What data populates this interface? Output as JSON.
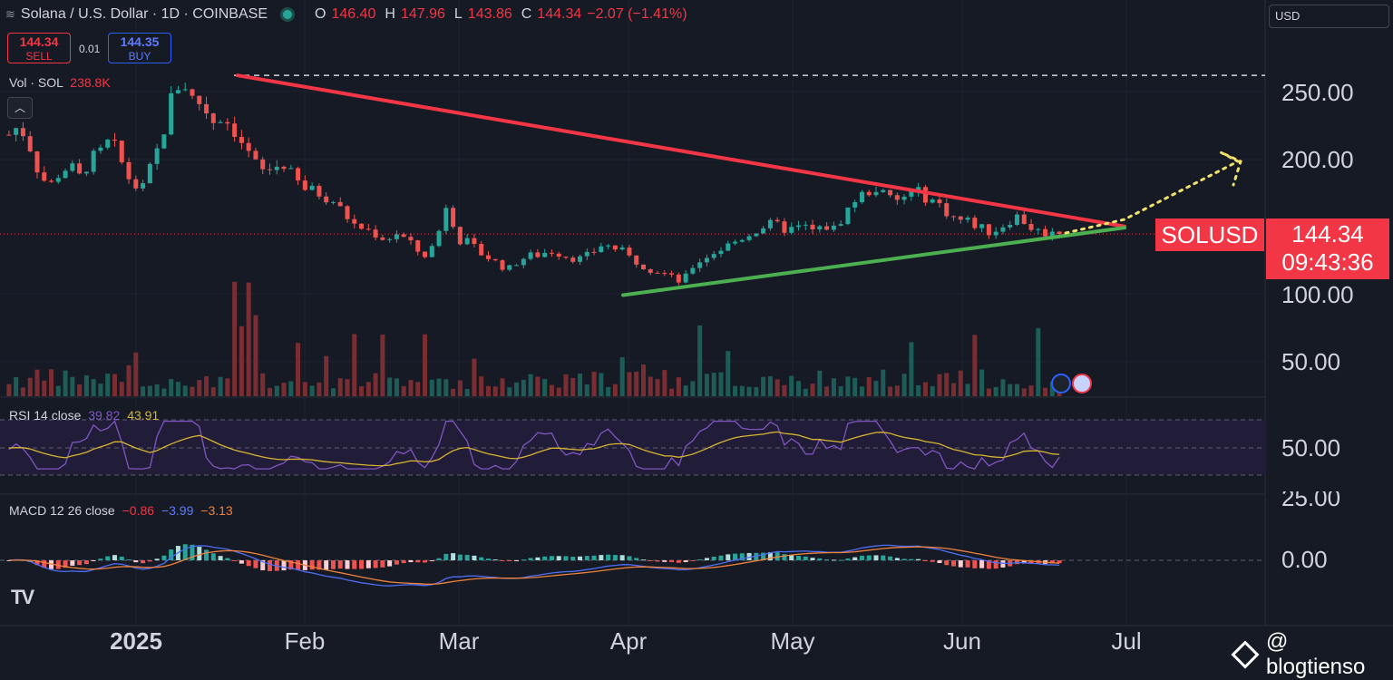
{
  "header": {
    "title": "Solana / U.S. Dollar · 1D · COINBASE",
    "open_label": "O",
    "open": "146.40",
    "high_label": "H",
    "high": "147.96",
    "low_label": "L",
    "low": "143.86",
    "close_label": "C",
    "close": "144.34",
    "change": "−2.07 (−1.41%)"
  },
  "trade": {
    "sell_price": "144.34",
    "sell_label": "SELL",
    "spread": "0.01",
    "buy_price": "144.35",
    "buy_label": "BUY"
  },
  "volume_legend": {
    "label": "Vol · SOL",
    "value": "238.8K"
  },
  "currency_select": "USD",
  "rsi_legend": {
    "label": "RSI 14 close",
    "v1": "39.82",
    "v2": "43.91"
  },
  "macd_legend": {
    "label": "MACD 12 26 close",
    "v1": "−0.86",
    "v2": "−3.99",
    "v3": "−3.13"
  },
  "price_axis": [
    "250.00",
    "200.00",
    "100.00",
    "50.00"
  ],
  "rsi_axis": [
    "50.00",
    "25.00"
  ],
  "macd_axis": [
    "0.00"
  ],
  "time_axis": [
    "2025",
    "Feb",
    "Mar",
    "Apr",
    "May",
    "Jun",
    "Jul"
  ],
  "symbol_tag": "SOLUSD",
  "last_price": "144.34",
  "countdown": "09:43:36",
  "watermark": "@ blogtienso",
  "logo": "TV",
  "colors": {
    "up": "#26a69a",
    "down": "#ef5350",
    "resistance": "#f23645",
    "support": "#4caf50",
    "projection": "#f0e26a",
    "rsi": "#7e57c2",
    "rsi_ma": "#d8b531",
    "macd": "#4d6ef5",
    "signal": "#f0823c"
  },
  "chart_data": {
    "type": "candlestick",
    "title": "Solana / U.S. Dollar · 1D · COINBASE",
    "yaxis_ticks": [
      250,
      200,
      100,
      50
    ],
    "x_months": [
      "2025",
      "Feb",
      "Mar",
      "Apr",
      "May",
      "Jun",
      "Jul"
    ],
    "close_path": [
      218,
      225,
      210,
      188,
      180,
      190,
      195,
      186,
      200,
      205,
      215,
      198,
      182,
      176,
      196,
      215,
      248,
      258,
      245,
      240,
      228,
      232,
      222,
      210,
      198,
      190,
      194,
      196,
      185,
      178,
      176,
      172,
      168,
      158,
      150,
      148,
      144,
      140,
      145,
      140,
      132,
      128,
      142,
      170,
      140,
      138,
      131,
      127,
      122,
      118,
      125,
      128,
      129,
      132,
      130,
      127,
      126,
      129,
      136,
      135,
      132,
      126,
      122,
      118,
      116,
      112,
      108,
      120,
      126,
      130,
      134,
      138,
      142,
      146,
      150,
      152,
      148,
      148,
      150,
      146,
      150,
      148,
      160,
      170,
      175,
      178,
      172,
      168,
      173,
      176,
      171,
      168,
      160,
      155,
      154,
      150,
      146,
      148,
      154,
      158,
      150,
      146,
      145,
      144.34
    ],
    "last_price": 144.34,
    "resistance_line": {
      "from_price": 262,
      "to_price": 150
    },
    "support_line": {
      "from_price": 99,
      "to_price": 149
    },
    "reference_level": 262,
    "volume_last": "238.8K",
    "rsi": {
      "period": 14,
      "value": 39.82,
      "ma": 43.91
    },
    "macd": {
      "fast": 12,
      "slow": 26,
      "hist": -0.86,
      "macd": -3.99,
      "signal": -3.13
    }
  }
}
